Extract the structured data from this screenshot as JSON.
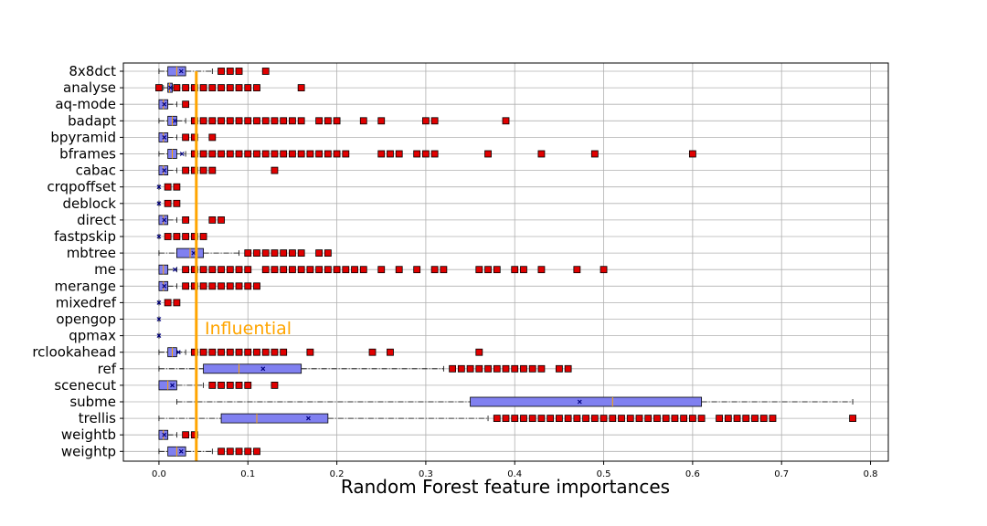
{
  "chart_data": {
    "type": "boxplot",
    "orientation": "horizontal",
    "xlabel": "Random Forest feature importances",
    "xlim": [
      -0.04,
      0.82
    ],
    "xticks": [
      0.0,
      0.1,
      0.2,
      0.3,
      0.4,
      0.5,
      0.6,
      0.7,
      0.8
    ],
    "xtick_labels": [
      "0.0",
      "0.1",
      "0.2",
      "0.3",
      "0.4",
      "0.5",
      "0.6",
      "0.7",
      "0.8"
    ],
    "grid": true,
    "threshold": {
      "value": 0.042,
      "label": "Influential",
      "color": "#FFA500"
    },
    "colors": {
      "box": "#8080F0",
      "outlier": "#E00000",
      "median": "#FFA500",
      "mean": "#000080"
    },
    "categories": [
      "8x8dct",
      "analyse",
      "aq-mode",
      "badapt",
      "bpyramid",
      "bframes",
      "cabac",
      "crqpoffset",
      "deblock",
      "direct",
      "fastpskip",
      "mbtree",
      "me",
      "merange",
      "mixedref",
      "opengop",
      "qpmax",
      "rclookahead",
      "ref",
      "scenecut",
      "subme",
      "trellis",
      "weightb",
      "weightp"
    ],
    "boxes": [
      {
        "whislo": 0.0,
        "q1": 0.01,
        "med": 0.02,
        "q3": 0.03,
        "whishi": 0.06,
        "mean": 0.025,
        "fliers": [
          0.07,
          0.08,
          0.09,
          0.12
        ]
      },
      {
        "whislo": 0.005,
        "q1": 0.01,
        "med": 0.012,
        "q3": 0.015,
        "whishi": 0.017,
        "mean": 0.013,
        "fliers": [
          0.0,
          0.02,
          0.03,
          0.04,
          0.05,
          0.06,
          0.07,
          0.08,
          0.09,
          0.1,
          0.11,
          0.16
        ]
      },
      {
        "whislo": 0.0,
        "q1": 0.0,
        "med": 0.005,
        "q3": 0.01,
        "whishi": 0.02,
        "mean": 0.006,
        "fliers": [
          0.03
        ]
      },
      {
        "whislo": 0.0,
        "q1": 0.01,
        "med": 0.015,
        "q3": 0.02,
        "whishi": 0.03,
        "mean": 0.018,
        "fliers": [
          0.04,
          0.05,
          0.06,
          0.07,
          0.08,
          0.09,
          0.1,
          0.11,
          0.12,
          0.13,
          0.14,
          0.15,
          0.16,
          0.18,
          0.19,
          0.2,
          0.23,
          0.25,
          0.3,
          0.31,
          0.39
        ]
      },
      {
        "whislo": 0.0,
        "q1": 0.0,
        "med": 0.005,
        "q3": 0.01,
        "whishi": 0.02,
        "mean": 0.006,
        "fliers": [
          0.03,
          0.04,
          0.06
        ]
      },
      {
        "whislo": 0.0,
        "q1": 0.01,
        "med": 0.015,
        "q3": 0.02,
        "whishi": 0.03,
        "mean": 0.026,
        "fliers": [
          0.04,
          0.05,
          0.06,
          0.07,
          0.08,
          0.09,
          0.1,
          0.11,
          0.12,
          0.13,
          0.14,
          0.15,
          0.16,
          0.17,
          0.18,
          0.19,
          0.2,
          0.21,
          0.25,
          0.26,
          0.27,
          0.29,
          0.3,
          0.31,
          0.37,
          0.43,
          0.49,
          0.6
        ]
      },
      {
        "whislo": 0.0,
        "q1": 0.0,
        "med": 0.005,
        "q3": 0.01,
        "whishi": 0.02,
        "mean": 0.006,
        "fliers": [
          0.03,
          0.04,
          0.05,
          0.06,
          0.13
        ]
      },
      {
        "whislo": 0.0,
        "q1": 0.0,
        "med": 0.0,
        "q3": 0.0,
        "whishi": 0.0,
        "mean": 0.0,
        "fliers": [
          0.01,
          0.02
        ]
      },
      {
        "whislo": 0.0,
        "q1": 0.0,
        "med": 0.0,
        "q3": 0.0,
        "whishi": 0.0,
        "mean": 0.0,
        "fliers": [
          0.01,
          0.02
        ]
      },
      {
        "whislo": 0.0,
        "q1": 0.0,
        "med": 0.005,
        "q3": 0.01,
        "whishi": 0.02,
        "mean": 0.006,
        "fliers": [
          0.03,
          0.06,
          0.07
        ]
      },
      {
        "whislo": 0.0,
        "q1": 0.0,
        "med": 0.0,
        "q3": 0.0,
        "whishi": 0.0,
        "mean": 0.0,
        "fliers": [
          0.01,
          0.02,
          0.03,
          0.04,
          0.05
        ]
      },
      {
        "whislo": 0.0,
        "q1": 0.02,
        "med": 0.035,
        "q3": 0.05,
        "whishi": 0.09,
        "mean": 0.039,
        "fliers": [
          0.1,
          0.11,
          0.12,
          0.13,
          0.14,
          0.15,
          0.16,
          0.18,
          0.19
        ]
      },
      {
        "whislo": 0.0,
        "q1": 0.0,
        "med": 0.005,
        "q3": 0.01,
        "whishi": 0.02,
        "mean": 0.018,
        "fliers": [
          0.03,
          0.04,
          0.05,
          0.06,
          0.07,
          0.08,
          0.09,
          0.1,
          0.12,
          0.13,
          0.14,
          0.15,
          0.16,
          0.17,
          0.18,
          0.19,
          0.2,
          0.21,
          0.22,
          0.23,
          0.25,
          0.27,
          0.29,
          0.31,
          0.32,
          0.36,
          0.37,
          0.38,
          0.4,
          0.41,
          0.43,
          0.47,
          0.5
        ]
      },
      {
        "whislo": 0.0,
        "q1": 0.0,
        "med": 0.005,
        "q3": 0.01,
        "whishi": 0.02,
        "mean": 0.006,
        "fliers": [
          0.03,
          0.04,
          0.05,
          0.06,
          0.07,
          0.08,
          0.09,
          0.1,
          0.11
        ]
      },
      {
        "whislo": 0.0,
        "q1": 0.0,
        "med": 0.0,
        "q3": 0.0,
        "whishi": 0.0,
        "mean": 0.0,
        "fliers": [
          0.01,
          0.02
        ]
      },
      {
        "whislo": 0.0,
        "q1": 0.0,
        "med": 0.0,
        "q3": 0.0,
        "whishi": 0.0,
        "mean": 0.0,
        "fliers": []
      },
      {
        "whislo": 0.0,
        "q1": 0.0,
        "med": 0.0,
        "q3": 0.0,
        "whishi": 0.0,
        "mean": 0.0,
        "fliers": []
      },
      {
        "whislo": 0.0,
        "q1": 0.01,
        "med": 0.015,
        "q3": 0.02,
        "whishi": 0.03,
        "mean": 0.022,
        "fliers": [
          0.04,
          0.05,
          0.06,
          0.07,
          0.08,
          0.09,
          0.1,
          0.11,
          0.12,
          0.13,
          0.14,
          0.17,
          0.24,
          0.26,
          0.36
        ]
      },
      {
        "whislo": 0.0,
        "q1": 0.05,
        "med": 0.09,
        "q3": 0.16,
        "whishi": 0.32,
        "mean": 0.117,
        "fliers": [
          0.33,
          0.34,
          0.35,
          0.36,
          0.37,
          0.38,
          0.39,
          0.4,
          0.41,
          0.42,
          0.43,
          0.45,
          0.46
        ]
      },
      {
        "whislo": 0.0,
        "q1": 0.0,
        "med": 0.01,
        "q3": 0.02,
        "whishi": 0.05,
        "mean": 0.015,
        "fliers": [
          0.06,
          0.07,
          0.08,
          0.09,
          0.1,
          0.13
        ]
      },
      {
        "whislo": 0.02,
        "q1": 0.35,
        "med": 0.51,
        "q3": 0.61,
        "whishi": 0.78,
        "mean": 0.473,
        "fliers": []
      },
      {
        "whislo": 0.0,
        "q1": 0.07,
        "med": 0.11,
        "q3": 0.19,
        "whishi": 0.37,
        "mean": 0.168,
        "fliers": [
          0.38,
          0.39,
          0.4,
          0.41,
          0.42,
          0.43,
          0.44,
          0.45,
          0.46,
          0.47,
          0.48,
          0.49,
          0.5,
          0.51,
          0.52,
          0.53,
          0.54,
          0.55,
          0.56,
          0.57,
          0.58,
          0.59,
          0.6,
          0.61,
          0.63,
          0.64,
          0.65,
          0.66,
          0.67,
          0.68,
          0.69,
          0.78
        ]
      },
      {
        "whislo": 0.0,
        "q1": 0.0,
        "med": 0.005,
        "q3": 0.01,
        "whishi": 0.02,
        "mean": 0.006,
        "fliers": [
          0.03,
          0.04
        ]
      },
      {
        "whislo": 0.0,
        "q1": 0.01,
        "med": 0.02,
        "q3": 0.03,
        "whishi": 0.06,
        "mean": 0.025,
        "fliers": [
          0.07,
          0.08,
          0.09,
          0.1,
          0.11
        ]
      }
    ]
  }
}
